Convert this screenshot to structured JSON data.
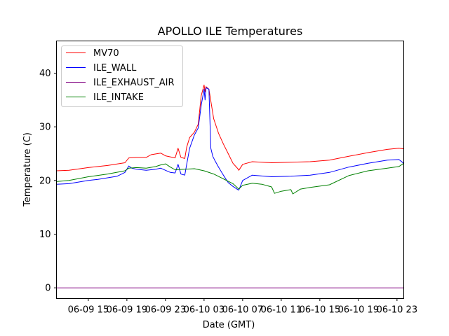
{
  "chart_data": {
    "type": "line",
    "title": "APOLLO ILE Temperatures",
    "xlabel": "Date (GMT)",
    "ylabel": "Temperature (C)",
    "x_unit": "hours since 06-09 00:00 GMT",
    "xlim": [
      11.7,
      47.7
    ],
    "ylim": [
      -2,
      46
    ],
    "yticks": [
      0,
      10,
      20,
      30,
      40
    ],
    "xticks": [
      {
        "value": 15,
        "label": "06-09 15"
      },
      {
        "value": 19,
        "label": "06-09 19"
      },
      {
        "value": 23,
        "label": "06-09 23"
      },
      {
        "value": 27,
        "label": "06-10 03"
      },
      {
        "value": 31,
        "label": "06-10 07"
      },
      {
        "value": 35,
        "label": "06-10 11"
      },
      {
        "value": 39,
        "label": "06-10 15"
      },
      {
        "value": 43,
        "label": "06-10 19"
      },
      {
        "value": 47,
        "label": "06-10 23"
      }
    ],
    "legend_position": "top-left",
    "series": [
      {
        "name": "MV70",
        "color": "#ff0000",
        "x": [
          11.7,
          13,
          15,
          17,
          18.8,
          19.2,
          20,
          21,
          21.5,
          22.5,
          23,
          24,
          24.3,
          24.6,
          25,
          25.2,
          25.5,
          26,
          26.4,
          26.7,
          27,
          27.1,
          27.2,
          27.5,
          28,
          28.5,
          29,
          29.5,
          30,
          30.5,
          30.6,
          31,
          32,
          34,
          36,
          38,
          40,
          42,
          44,
          46,
          47.2,
          47.7
        ],
        "y": [
          21.8,
          21.9,
          22.4,
          22.8,
          23.3,
          24.2,
          24.3,
          24.3,
          24.8,
          25.1,
          24.6,
          24.2,
          26.0,
          24.3,
          24.1,
          26.2,
          28.0,
          29.0,
          30.5,
          35.8,
          37.8,
          36.5,
          37.5,
          37.0,
          31.5,
          28.8,
          26.8,
          25.0,
          23.2,
          22.2,
          21.9,
          23.0,
          23.5,
          23.3,
          23.4,
          23.5,
          23.8,
          24.5,
          25.2,
          25.8,
          26.0,
          25.9
        ]
      },
      {
        "name": "ILE_WALL",
        "color": "#0000ff",
        "x": [
          11.7,
          13,
          15,
          16,
          17,
          18,
          18.8,
          19.2,
          19.5,
          20,
          21,
          22,
          22.5,
          23,
          23.5,
          24,
          24.3,
          24.6,
          25,
          25.2,
          25.5,
          26,
          26.4,
          26.7,
          27,
          27.1,
          27.2,
          27.5,
          27.7,
          27.9,
          28.1,
          28.5,
          29,
          29.5,
          30,
          30.5,
          30.6,
          31,
          32,
          34,
          36,
          38,
          40,
          42,
          44,
          46,
          47.2,
          47.7
        ],
        "y": [
          19.3,
          19.4,
          20.0,
          20.2,
          20.5,
          20.8,
          21.5,
          22.7,
          22.3,
          22.1,
          21.9,
          22.1,
          22.3,
          21.9,
          21.5,
          21.4,
          23.0,
          21.2,
          21.0,
          23.0,
          26.0,
          28.5,
          29.8,
          34.0,
          37.0,
          35.0,
          37.3,
          37.0,
          26.0,
          24.5,
          23.8,
          22.5,
          21.0,
          19.6,
          18.9,
          18.3,
          18.2,
          20.0,
          21.0,
          20.7,
          20.8,
          21.0,
          21.5,
          22.5,
          23.2,
          23.8,
          23.9,
          23.2
        ]
      },
      {
        "name": "ILE_EXHAUST_AIR",
        "color": "#800080",
        "x": [
          11.7,
          47.7
        ],
        "y": [
          0.0,
          0.0
        ]
      },
      {
        "name": "ILE_INTAKE",
        "color": "#008000",
        "x": [
          11.7,
          13,
          15,
          17,
          18.8,
          19.2,
          20,
          21,
          22,
          22.5,
          23,
          23.5,
          24,
          25,
          26,
          27,
          28,
          29,
          30,
          30.6,
          31,
          32,
          33,
          34,
          34.3,
          35,
          36,
          36.2,
          37,
          38,
          40,
          42,
          44,
          46,
          47.2,
          47.7
        ],
        "y": [
          19.8,
          20.0,
          20.7,
          21.2,
          21.8,
          22.3,
          22.4,
          22.3,
          22.6,
          22.9,
          23.1,
          22.5,
          22.0,
          22.1,
          22.2,
          21.8,
          21.2,
          20.3,
          19.4,
          18.4,
          19.1,
          19.5,
          19.3,
          18.8,
          17.6,
          18.0,
          18.3,
          17.5,
          18.4,
          18.7,
          19.2,
          20.9,
          21.8,
          22.3,
          22.6,
          23.2
        ]
      }
    ]
  }
}
